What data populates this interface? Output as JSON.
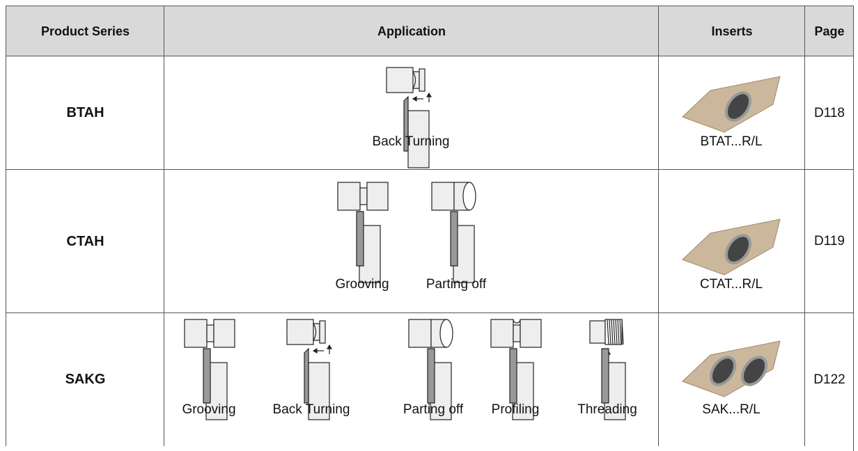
{
  "table": {
    "headers": [
      "Product Series",
      "Application",
      "Inserts",
      "Page"
    ],
    "rows": [
      {
        "series": "BTAH",
        "applications": [
          "Back Turning"
        ],
        "insert": "BTAT...R/L",
        "page": "D118"
      },
      {
        "series": "CTAH",
        "applications": [
          "Grooving",
          "Parting off"
        ],
        "insert": "CTAT...R/L",
        "page": "D119"
      },
      {
        "series": "SAKG",
        "applications": [
          "Grooving",
          "Back Turning",
          "Parting off",
          "Profiling",
          "Threading"
        ],
        "insert": "SAK...R/L",
        "page": "D122"
      }
    ]
  }
}
